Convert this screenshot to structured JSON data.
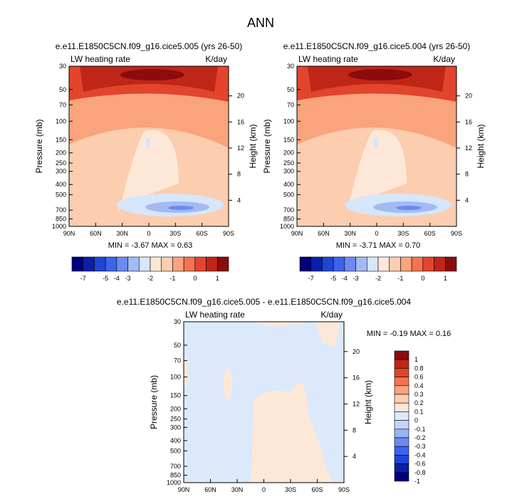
{
  "figure_title": "ANN",
  "colors": {
    "diverging_main": [
      "#00007f",
      "#0a1fa8",
      "#1f44d6",
      "#3c63ee",
      "#6c8bef",
      "#a2bbf3",
      "#d6e6fb",
      "#fde8d8",
      "#fccdae",
      "#f9a47d",
      "#f47352",
      "#e2452b",
      "#bf2618",
      "#8b0c0c"
    ],
    "diverging_diff": [
      "#00007f",
      "#0a1fa8",
      "#1f44d6",
      "#3c63ee",
      "#6c8bef",
      "#98b2f3",
      "#c2d5f8",
      "#dce9fb",
      "#fde8d8",
      "#fccdae",
      "#f9a47d",
      "#f47352",
      "#e2452b",
      "#bf2618",
      "#8b0c0c"
    ]
  },
  "chart_data": [
    {
      "type": "heatmap",
      "panel": "top-left",
      "title": "e.e11.E1850C5CN.f09_g16.cice5.005 (yrs 26-50)",
      "left_label": "LW heating rate",
      "right_label": "K/day",
      "ylabel": "Pressure (mb)",
      "y2label": "Height (km)",
      "x_ticks": [
        "90N",
        "60N",
        "30N",
        "0",
        "30S",
        "60S",
        "90S"
      ],
      "y_ticks": [
        "30",
        "50",
        "70",
        "100",
        "150",
        "200",
        "250",
        "300",
        "400",
        "500",
        "700",
        "850",
        "1000"
      ],
      "y2_ticks": [
        "20",
        "16",
        "12",
        "8",
        "4"
      ],
      "min_max": "MIN =  -3.67   MAX =   0.63",
      "colorbar_labels": [
        "-7",
        "-5",
        "-4",
        "-3",
        "-2",
        "-1",
        "0",
        "1"
      ]
    },
    {
      "type": "heatmap",
      "panel": "top-right",
      "title": "e.e11.E1850C5CN.f09_g16.cice5.004 (yrs 26-50)",
      "left_label": "LW heating rate",
      "right_label": "K/day",
      "ylabel": "Pressure (mb)",
      "y2label": "Height (km)",
      "x_ticks": [
        "90N",
        "60N",
        "30N",
        "0",
        "30S",
        "60S",
        "90S"
      ],
      "y_ticks": [
        "30",
        "50",
        "70",
        "100",
        "150",
        "200",
        "250",
        "300",
        "400",
        "500",
        "700",
        "850",
        "1000"
      ],
      "y2_ticks": [
        "20",
        "16",
        "12",
        "8",
        "4"
      ],
      "min_max": "MIN =  -3.71   MAX =   0.70",
      "colorbar_labels": [
        "-7",
        "-5",
        "-4",
        "-3",
        "-2",
        "-1",
        "0",
        "1"
      ]
    },
    {
      "type": "heatmap",
      "panel": "bottom",
      "title": "e.e11.E1850C5CN.f09_g16.cice5.005 - e.e11.E1850C5CN.f09_g16.cice5.004",
      "left_label": "LW heating rate",
      "right_label": "K/day",
      "ylabel": "Pressure (mb)",
      "y2label": "Height (km)",
      "x_ticks": [
        "90N",
        "60N",
        "30N",
        "0",
        "30S",
        "60S",
        "90S"
      ],
      "y_ticks": [
        "30",
        "50",
        "70",
        "100",
        "150",
        "200",
        "250",
        "300",
        "400",
        "500",
        "700",
        "850",
        "1000"
      ],
      "y2_ticks": [
        "20",
        "16",
        "12",
        "8",
        "4"
      ],
      "min_max": "MIN =  -0.19   MAX =   0.16",
      "colorbar_labels": [
        "1",
        "0.8",
        "0.6",
        "0.4",
        "0.3",
        "0.2",
        "0.1",
        "0",
        "-0.1",
        "-0.2",
        "-0.3",
        "-0.4",
        "-0.6",
        "-0.8",
        "-1"
      ]
    }
  ]
}
